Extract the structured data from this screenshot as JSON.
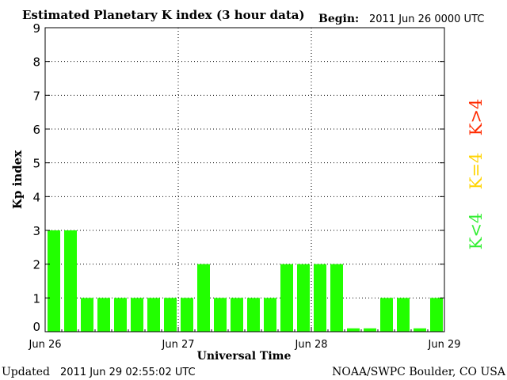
{
  "header": {
    "title": "Estimated Planetary K index (3 hour data)",
    "begin_label": "Begin:",
    "begin_value": "2011 Jun 26 0000 UTC"
  },
  "footer": {
    "updated_label": "Updated",
    "updated_value": "2011 Jun 29 02:55:02 UTC",
    "source": "NOAA/SWPC Boulder, CO USA"
  },
  "legend": {
    "high": {
      "label": "K>4",
      "color": "#ff2a00"
    },
    "equal": {
      "label": "K=4",
      "color": "#ffd400"
    },
    "low": {
      "label": "K<4",
      "color": "#33ee33"
    }
  },
  "chart_data": {
    "type": "bar",
    "title": "Estimated Planetary K index (3 hour data)",
    "xlabel": "Universal Time",
    "ylabel": "Kp index",
    "ylim": [
      0,
      9
    ],
    "yticks": [
      0,
      1,
      2,
      3,
      4,
      5,
      6,
      7,
      8,
      9
    ],
    "xticks": [
      "Jun 26",
      "Jun 27",
      "Jun 28",
      "Jun 29"
    ],
    "grid": true,
    "bar_color": "#22ff00",
    "values": [
      3,
      3,
      1,
      1,
      1,
      1,
      1,
      1,
      1,
      2,
      1,
      1,
      1,
      1,
      2,
      2,
      2,
      2,
      0.1,
      0.1,
      1,
      1,
      0.1,
      1
    ]
  }
}
